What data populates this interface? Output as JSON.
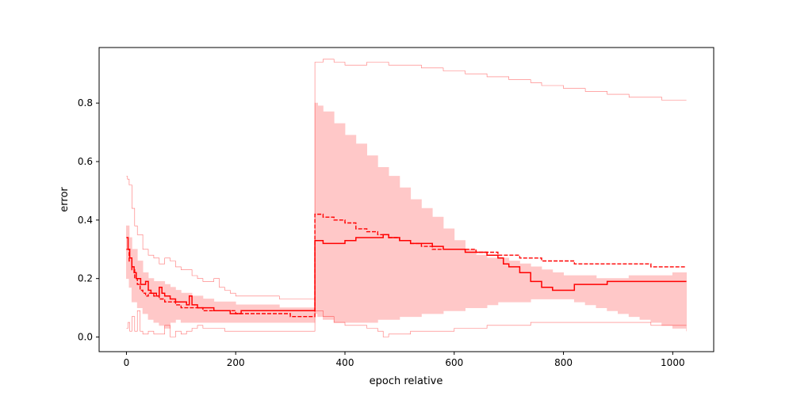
{
  "chart_data": {
    "type": "line",
    "title": "",
    "xlabel": "epoch relative",
    "ylabel": "error",
    "xlim": [
      -50,
      1075
    ],
    "ylim": [
      -0.05,
      0.99
    ],
    "xticks": [
      0,
      200,
      400,
      600,
      800,
      1000
    ],
    "xtick_labels": [
      "0",
      "200",
      "400",
      "600",
      "800",
      "1000"
    ],
    "yticks": [
      0.0,
      0.2,
      0.4,
      0.6,
      0.8
    ],
    "ytick_labels": [
      "0.0",
      "0.2",
      "0.4",
      "0.6",
      "0.8"
    ],
    "grid": false,
    "color": "#ff0000",
    "band_color": "#ffc8c8",
    "series": [
      {
        "style": "solid",
        "x": [
          0,
          3,
          6,
          10,
          14,
          18,
          22,
          26,
          30,
          35,
          40,
          45,
          50,
          55,
          60,
          65,
          70,
          75,
          80,
          90,
          100,
          110,
          115,
          120,
          130,
          140,
          150,
          160,
          170,
          180,
          190,
          200,
          210,
          220,
          240,
          260,
          280,
          300,
          320,
          344,
          345,
          350,
          360,
          380,
          400,
          420,
          440,
          460,
          470,
          480,
          500,
          520,
          540,
          560,
          580,
          600,
          620,
          640,
          660,
          680,
          690,
          700,
          720,
          740,
          760,
          780,
          800,
          820,
          840,
          860,
          880,
          900,
          920,
          940,
          960,
          980,
          1000,
          1025
        ],
        "y": [
          0.34,
          0.3,
          0.27,
          0.24,
          0.22,
          0.2,
          0.2,
          0.18,
          0.18,
          0.19,
          0.16,
          0.15,
          0.15,
          0.14,
          0.17,
          0.15,
          0.14,
          0.14,
          0.13,
          0.12,
          0.12,
          0.11,
          0.14,
          0.11,
          0.1,
          0.1,
          0.1,
          0.09,
          0.09,
          0.09,
          0.08,
          0.08,
          0.09,
          0.09,
          0.09,
          0.09,
          0.09,
          0.09,
          0.09,
          0.09,
          0.33,
          0.33,
          0.32,
          0.32,
          0.33,
          0.34,
          0.34,
          0.34,
          0.35,
          0.34,
          0.33,
          0.32,
          0.32,
          0.31,
          0.3,
          0.3,
          0.29,
          0.29,
          0.28,
          0.27,
          0.25,
          0.24,
          0.22,
          0.19,
          0.17,
          0.16,
          0.16,
          0.18,
          0.18,
          0.18,
          0.19,
          0.19,
          0.19,
          0.19,
          0.19,
          0.19,
          0.19,
          0.19
        ]
      },
      {
        "style": "dashed",
        "x": [
          0,
          5,
          10,
          15,
          20,
          25,
          30,
          35,
          40,
          50,
          60,
          70,
          80,
          90,
          100,
          120,
          140,
          160,
          180,
          200,
          220,
          240,
          260,
          280,
          300,
          344,
          345,
          360,
          380,
          400,
          420,
          440,
          460,
          480,
          500,
          520,
          540,
          560,
          580,
          600,
          620,
          640,
          660,
          680,
          700,
          720,
          740,
          760,
          780,
          800,
          820,
          840,
          860,
          880,
          900,
          920,
          940,
          960,
          980,
          1000,
          1025
        ],
        "y": [
          0.3,
          0.26,
          0.23,
          0.2,
          0.18,
          0.16,
          0.15,
          0.14,
          0.15,
          0.14,
          0.13,
          0.12,
          0.12,
          0.11,
          0.1,
          0.1,
          0.09,
          0.09,
          0.09,
          0.08,
          0.08,
          0.08,
          0.08,
          0.08,
          0.07,
          0.07,
          0.42,
          0.41,
          0.4,
          0.39,
          0.37,
          0.36,
          0.35,
          0.34,
          0.33,
          0.32,
          0.31,
          0.3,
          0.3,
          0.3,
          0.3,
          0.29,
          0.29,
          0.28,
          0.28,
          0.27,
          0.27,
          0.26,
          0.26,
          0.26,
          0.25,
          0.25,
          0.25,
          0.25,
          0.25,
          0.25,
          0.25,
          0.24,
          0.24,
          0.24,
          0.24
        ]
      },
      {
        "style": "band",
        "x": [
          0,
          5,
          10,
          20,
          30,
          40,
          50,
          60,
          70,
          80,
          90,
          100,
          120,
          140,
          160,
          180,
          200,
          240,
          280,
          320,
          344,
          345,
          350,
          360,
          380,
          400,
          420,
          440,
          460,
          480,
          500,
          520,
          540,
          560,
          580,
          600,
          620,
          640,
          660,
          680,
          700,
          720,
          740,
          760,
          780,
          800,
          820,
          840,
          860,
          880,
          900,
          920,
          940,
          960,
          980,
          1000,
          1025
        ],
        "upper": [
          0.38,
          0.34,
          0.3,
          0.26,
          0.22,
          0.2,
          0.19,
          0.19,
          0.18,
          0.17,
          0.16,
          0.15,
          0.14,
          0.13,
          0.12,
          0.12,
          0.11,
          0.11,
          0.1,
          0.1,
          0.1,
          0.8,
          0.79,
          0.77,
          0.73,
          0.69,
          0.66,
          0.62,
          0.58,
          0.55,
          0.51,
          0.47,
          0.44,
          0.41,
          0.37,
          0.33,
          0.3,
          0.28,
          0.27,
          0.27,
          0.26,
          0.25,
          0.24,
          0.23,
          0.22,
          0.21,
          0.21,
          0.21,
          0.2,
          0.2,
          0.2,
          0.21,
          0.21,
          0.21,
          0.21,
          0.22,
          0.22
        ],
        "lower": [
          0.2,
          0.17,
          0.12,
          0.1,
          0.08,
          0.06,
          0.05,
          0.04,
          0.03,
          0.05,
          0.06,
          0.05,
          0.05,
          0.05,
          0.05,
          0.05,
          0.05,
          0.05,
          0.05,
          0.05,
          0.05,
          0.08,
          0.07,
          0.06,
          0.05,
          0.05,
          0.05,
          0.05,
          0.06,
          0.06,
          0.07,
          0.07,
          0.08,
          0.08,
          0.09,
          0.09,
          0.1,
          0.1,
          0.11,
          0.12,
          0.12,
          0.12,
          0.13,
          0.13,
          0.13,
          0.13,
          0.12,
          0.11,
          0.1,
          0.09,
          0.08,
          0.07,
          0.06,
          0.05,
          0.04,
          0.03,
          0.02
        ]
      },
      {
        "style": "envelope-max",
        "x": [
          0,
          2,
          5,
          10,
          15,
          20,
          30,
          40,
          50,
          60,
          70,
          80,
          90,
          100,
          110,
          120,
          130,
          140,
          150,
          160,
          170,
          180,
          190,
          200,
          220,
          240,
          260,
          280,
          300,
          320,
          344,
          345,
          350,
          360,
          380,
          400,
          420,
          440,
          460,
          480,
          500,
          520,
          540,
          560,
          580,
          600,
          620,
          640,
          660,
          680,
          700,
          720,
          740,
          760,
          780,
          800,
          820,
          840,
          860,
          880,
          900,
          920,
          940,
          960,
          980,
          1000,
          1025
        ],
        "y": [
          0.55,
          0.54,
          0.52,
          0.44,
          0.38,
          0.35,
          0.3,
          0.28,
          0.27,
          0.25,
          0.27,
          0.26,
          0.24,
          0.23,
          0.23,
          0.21,
          0.2,
          0.19,
          0.19,
          0.2,
          0.17,
          0.16,
          0.15,
          0.14,
          0.14,
          0.14,
          0.14,
          0.13,
          0.13,
          0.13,
          0.13,
          0.94,
          0.94,
          0.95,
          0.94,
          0.93,
          0.93,
          0.94,
          0.94,
          0.93,
          0.93,
          0.93,
          0.92,
          0.92,
          0.91,
          0.91,
          0.9,
          0.9,
          0.89,
          0.89,
          0.88,
          0.88,
          0.87,
          0.86,
          0.86,
          0.85,
          0.85,
          0.84,
          0.84,
          0.83,
          0.83,
          0.82,
          0.82,
          0.82,
          0.81,
          0.81,
          0.81
        ]
      },
      {
        "style": "envelope-min",
        "x": [
          0,
          3,
          6,
          10,
          15,
          20,
          25,
          30,
          40,
          50,
          60,
          70,
          80,
          90,
          100,
          110,
          120,
          130,
          140,
          160,
          180,
          200,
          220,
          240,
          260,
          280,
          300,
          320,
          344,
          345,
          350,
          360,
          380,
          400,
          420,
          440,
          460,
          470,
          480,
          500,
          520,
          540,
          560,
          580,
          600,
          620,
          640,
          660,
          680,
          700,
          720,
          740,
          760,
          780,
          800,
          820,
          840,
          860,
          880,
          900,
          920,
          940,
          960,
          980,
          1000,
          1025
        ],
        "y": [
          0.03,
          0.05,
          0.02,
          0.07,
          0.02,
          0.09,
          0.02,
          0.01,
          0.02,
          0.01,
          0.01,
          0.04,
          0.0,
          0.02,
          0.01,
          0.02,
          0.03,
          0.04,
          0.03,
          0.03,
          0.02,
          0.02,
          0.02,
          0.02,
          0.02,
          0.02,
          0.02,
          0.02,
          0.02,
          0.09,
          0.09,
          0.07,
          0.05,
          0.04,
          0.04,
          0.03,
          0.02,
          0.0,
          0.01,
          0.01,
          0.02,
          0.02,
          0.02,
          0.02,
          0.03,
          0.03,
          0.03,
          0.04,
          0.04,
          0.04,
          0.04,
          0.05,
          0.05,
          0.05,
          0.05,
          0.05,
          0.05,
          0.05,
          0.05,
          0.05,
          0.05,
          0.05,
          0.04,
          0.04,
          0.04,
          0.04
        ]
      }
    ]
  }
}
